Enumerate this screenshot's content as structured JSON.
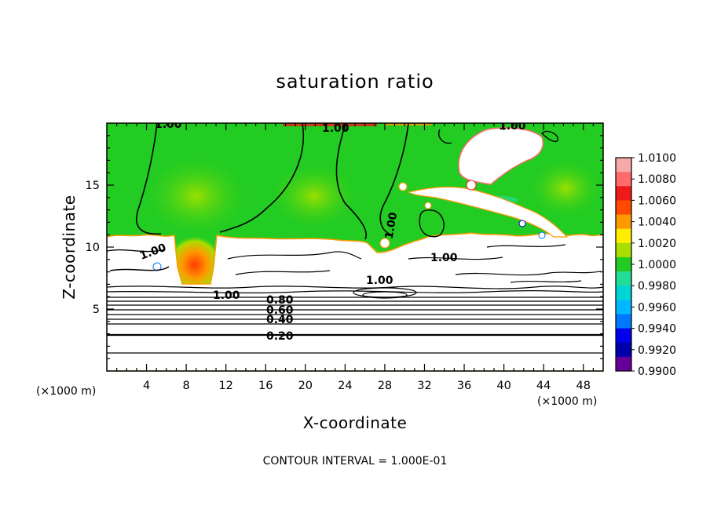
{
  "chart_data": {
    "type": "heatmap",
    "title": "saturation ratio",
    "xlabel": "X-coordinate",
    "ylabel": "Z-coordinate",
    "x_unit": "(×1000 m)",
    "z_unit": "(×1000 m)",
    "xlim": [
      0,
      50
    ],
    "ylim": [
      0,
      20
    ],
    "x_ticks": [
      4,
      8,
      12,
      16,
      20,
      24,
      28,
      32,
      36,
      40,
      44,
      48
    ],
    "y_ticks": [
      5,
      10,
      15
    ],
    "footnote": "CONTOUR INTERVAL = 1.000E-01",
    "colorbar": {
      "labels": [
        "1.0100",
        "1.0080",
        "1.0060",
        "1.0040",
        "1.0020",
        "1.0000",
        "0.9980",
        "0.9960",
        "0.9940",
        "0.9920",
        "0.9900"
      ],
      "colors": [
        "#f7a8a8",
        "#ff6a6a",
        "#ee1a1a",
        "#ff4a00",
        "#ff9900",
        "#ffee00",
        "#aadd00",
        "#22cc22",
        "#22dd99",
        "#00d4d4",
        "#00b8ff",
        "#0077ff",
        "#0000ee",
        "#0000aa",
        "#660099"
      ]
    },
    "contour_labels": [
      {
        "text": "1.00"
      },
      {
        "text": "1.00"
      },
      {
        "text": "1.00"
      },
      {
        "text": "1.00"
      },
      {
        "text": "1.00"
      },
      {
        "text": "1.00"
      },
      {
        "text": "1.00"
      },
      {
        "text": "1.00"
      },
      {
        "text": "0.80"
      },
      {
        "text": "0.60"
      },
      {
        "text": "0.40"
      },
      {
        "text": "0.20"
      }
    ]
  }
}
